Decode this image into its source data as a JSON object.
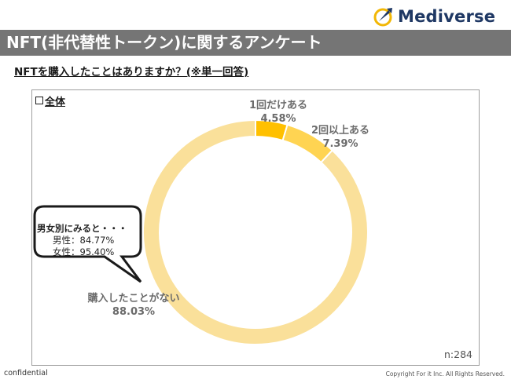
{
  "brand": {
    "name": "Mediverse"
  },
  "colors": {
    "accent": "#1f3864",
    "title_bar": "#757575",
    "slice_1": "#ffc000",
    "slice_2": "#ffd452",
    "slice_3": "#fae09a"
  },
  "header": {
    "title": "NFT(非代替性トークン)に関するアンケート"
  },
  "question": "NFTを購入したことはありますか？(※単一回答)",
  "panel": {
    "label": "全体",
    "n": "n:284"
  },
  "chart_data": {
    "type": "pie",
    "subtype": "donut",
    "categories": [
      "1回だけある",
      "2回以上ある",
      "購入したことがない"
    ],
    "values": [
      4.58,
      7.39,
      88.03
    ],
    "value_labels": [
      "4.58%",
      "7.39%",
      "88.03%"
    ],
    "colors": [
      "#ffc000",
      "#ffd452",
      "#fae09a"
    ]
  },
  "callout": {
    "title": "男女別にみると・・・",
    "lines": [
      "男性：84.77%",
      "女性：95.40%"
    ]
  },
  "footer": {
    "left": "confidential",
    "right": "Copyright For it Inc. All Rights Reserved."
  }
}
